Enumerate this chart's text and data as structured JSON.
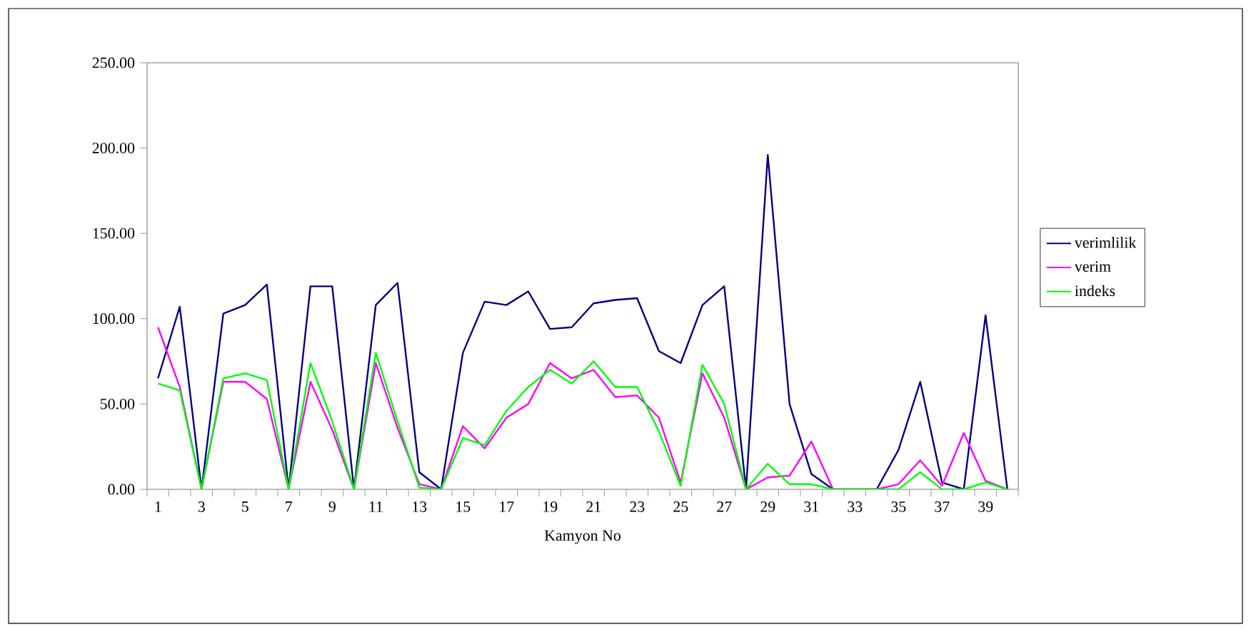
{
  "chart_data": {
    "type": "line",
    "xlabel": "Kamyon No",
    "categories": [
      "1",
      null,
      "3",
      null,
      "5",
      null,
      "7",
      null,
      "9",
      null,
      "11",
      null,
      "13",
      null,
      "15",
      null,
      "17",
      null,
      "19",
      null,
      "21",
      null,
      "23",
      null,
      "25",
      null,
      "27",
      null,
      "29",
      null,
      "31",
      null,
      "33",
      null,
      "35",
      null,
      "37",
      null,
      "39",
      null
    ],
    "series": [
      {
        "name": "verimlilik",
        "color": "#000080",
        "values": [
          65,
          107,
          0,
          103,
          108,
          120,
          0,
          119,
          119,
          0,
          108,
          121,
          10,
          0,
          80,
          110,
          108,
          116,
          94,
          95,
          109,
          111,
          112,
          81,
          74,
          108,
          119,
          0,
          196,
          50,
          9,
          0,
          0,
          0,
          23,
          63,
          4,
          0,
          102,
          0
        ]
      },
      {
        "name": "verim",
        "color": "#ff00ff",
        "values": [
          95,
          60,
          0,
          63,
          63,
          53,
          0,
          63,
          35,
          0,
          74,
          36,
          3,
          0,
          37,
          24,
          42,
          50,
          74,
          65,
          70,
          54,
          55,
          42,
          4,
          68,
          42,
          0,
          7,
          8,
          28,
          0,
          0,
          0,
          3,
          17,
          2,
          33,
          5,
          0
        ]
      },
      {
        "name": "indeks",
        "color": "#00ff00",
        "values": [
          62,
          58,
          0,
          65,
          68,
          64,
          0,
          74,
          40,
          0,
          80,
          40,
          1,
          0,
          30,
          26,
          46,
          60,
          70,
          62,
          75,
          60,
          60,
          34,
          2,
          73,
          50,
          0,
          15,
          3,
          3,
          0,
          0,
          0,
          0,
          10,
          0,
          0,
          4,
          0
        ]
      }
    ],
    "ylim": [
      0,
      250
    ],
    "yticks": [
      {
        "value": 0,
        "label": "0.00"
      },
      {
        "value": 50,
        "label": "50.00"
      },
      {
        "value": 100,
        "label": "100.00"
      },
      {
        "value": 150,
        "label": "150.00"
      },
      {
        "value": 200,
        "label": "200.00"
      },
      {
        "value": 250,
        "label": "250.00"
      }
    ],
    "legend": "right",
    "marker": "none",
    "line_style": "solid",
    "grid": false
  }
}
